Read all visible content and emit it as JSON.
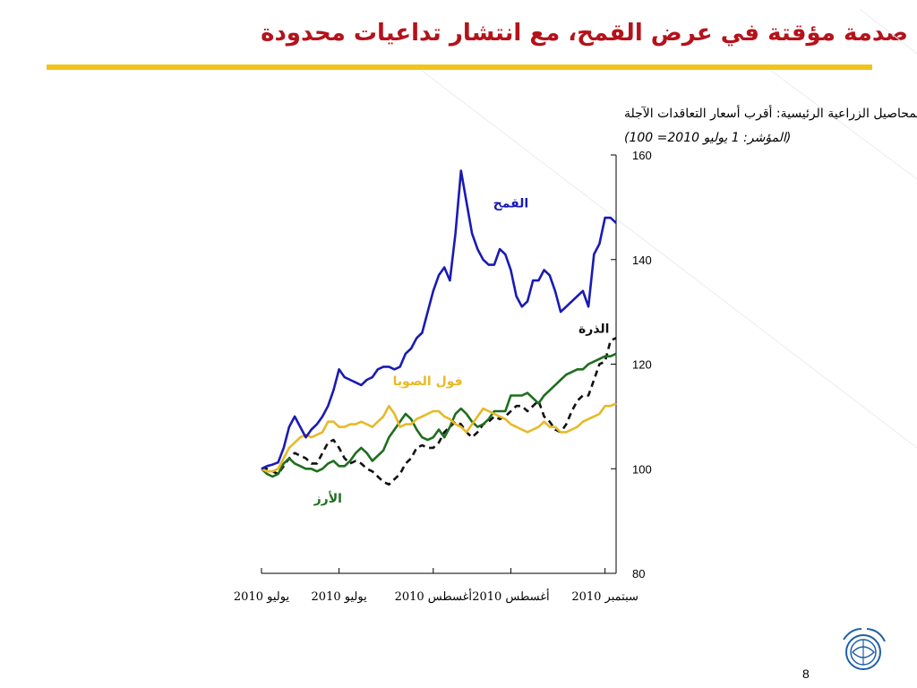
{
  "slide": {
    "title": "صدمة مؤقتة في عرض القمح، مع انتشار تداعيات محدودة",
    "page_number": "8",
    "accent_color": "#f0c419",
    "title_color": "#b5121b"
  },
  "chart_data": {
    "type": "line",
    "title": "المحاصيل الزراعية الرئيسية: أقرب أسعار التعاقدات الآجلة",
    "subtitle": "(المؤشر: 1 يوليو 2010= 100)",
    "ylim": [
      80,
      160
    ],
    "yticks": [
      80,
      100,
      120,
      140,
      160
    ],
    "y_axis_side": "right",
    "grid": false,
    "x_tick_labels": [
      "يوليو 2010",
      "يوليو 2010",
      "أغسطس 2010",
      "أغسطس 2010",
      "سبتمبر 2010"
    ],
    "x_tick_days": [
      0,
      14,
      31,
      45,
      62
    ],
    "series": [
      {
        "name": "القمح",
        "color": "#1a1ab5",
        "dash": "solid",
        "x": [
          0,
          1,
          2,
          3,
          4,
          5,
          6,
          7,
          8,
          9,
          10,
          11,
          12,
          13,
          14,
          15,
          16,
          17,
          18,
          19,
          20,
          21,
          22,
          23,
          24,
          25,
          26,
          27,
          28,
          29,
          30,
          31,
          32,
          33,
          34,
          35,
          36,
          37,
          38,
          39,
          40,
          41,
          42,
          43,
          44,
          45,
          46,
          47,
          48,
          49,
          50,
          51,
          52,
          53,
          54,
          55,
          56,
          57,
          58,
          59,
          60,
          61,
          62,
          63,
          64
        ],
        "values": [
          100,
          100.5,
          100.8,
          101.2,
          104,
          108,
          110,
          108,
          106,
          107.5,
          108.5,
          110,
          112,
          115,
          119,
          117.5,
          117,
          116.5,
          116,
          117,
          117.5,
          119,
          119.5,
          119.5,
          119,
          119.5,
          122,
          123,
          125,
          126,
          130,
          134,
          137,
          138.5,
          136,
          145,
          157,
          151,
          145,
          142,
          140,
          139,
          139,
          142,
          141,
          138,
          133,
          131,
          132,
          136,
          136,
          138,
          137,
          134,
          130,
          131,
          132,
          133,
          134,
          131,
          141,
          143,
          148,
          148,
          147
        ],
        "label_pos": "above-right"
      },
      {
        "name": "الذرة",
        "color": "#111111",
        "dash": "dashed",
        "x": [
          0,
          1,
          2,
          3,
          4,
          5,
          6,
          7,
          8,
          9,
          10,
          11,
          12,
          13,
          14,
          15,
          16,
          17,
          18,
          19,
          20,
          21,
          22,
          23,
          24,
          25,
          26,
          27,
          28,
          29,
          30,
          31,
          32,
          33,
          34,
          35,
          36,
          37,
          38,
          39,
          40,
          41,
          42,
          43,
          44,
          45,
          46,
          47,
          48,
          49,
          50,
          51,
          52,
          53,
          54,
          55,
          56,
          57,
          58,
          59,
          60,
          61,
          62,
          63,
          64
        ],
        "values": [
          100,
          100,
          99.5,
          99,
          100.5,
          102,
          103,
          102.5,
          102,
          101,
          101,
          103,
          105,
          105.5,
          104,
          102,
          101,
          101.5,
          101,
          100,
          99.5,
          98.5,
          97.5,
          97,
          98,
          99,
          101,
          102,
          104,
          104.5,
          104,
          104,
          105,
          107,
          108,
          109,
          108.5,
          107,
          106,
          107,
          108.5,
          109,
          110,
          109.5,
          110,
          111,
          112,
          112,
          111,
          112,
          113,
          110,
          109,
          107.5,
          107,
          108.5,
          111,
          113,
          114,
          114,
          117,
          120,
          120.5,
          124.5,
          125
        ],
        "label_pos": "above"
      },
      {
        "name": "فول الصويا",
        "color": "#e8b928",
        "dash": "solid",
        "x": [
          0,
          1,
          2,
          3,
          4,
          5,
          6,
          7,
          8,
          9,
          10,
          11,
          12,
          13,
          14,
          15,
          16,
          17,
          18,
          19,
          20,
          21,
          22,
          23,
          24,
          25,
          26,
          27,
          28,
          29,
          30,
          31,
          32,
          33,
          34,
          35,
          36,
          37,
          38,
          39,
          40,
          41,
          42,
          43,
          44,
          45,
          46,
          47,
          48,
          49,
          50,
          51,
          52,
          53,
          54,
          55,
          56,
          57,
          58,
          59,
          60,
          61,
          62,
          63,
          64
        ],
        "values": [
          100,
          99.5,
          99.5,
          100,
          102,
          104,
          105,
          106,
          106.5,
          106,
          106.5,
          107,
          109,
          109,
          108,
          108,
          108.5,
          108.5,
          109,
          108.5,
          108,
          109,
          110,
          112,
          110.5,
          108,
          108.5,
          108.5,
          109.5,
          110,
          110.5,
          111,
          111,
          110,
          109.5,
          108.5,
          108,
          107,
          108.5,
          110,
          111.5,
          111,
          110.5,
          110,
          109.5,
          108.5,
          108,
          107.5,
          107,
          107.5,
          108,
          109,
          108,
          108,
          107,
          107,
          107.5,
          108,
          109,
          109.5,
          110,
          110.5,
          112,
          112,
          112.5
        ],
        "label_pos": "left"
      },
      {
        "name": "الأرز",
        "color": "#1e6e1e",
        "dash": "solid",
        "x": [
          0,
          1,
          2,
          3,
          4,
          5,
          6,
          7,
          8,
          9,
          10,
          11,
          12,
          13,
          14,
          15,
          16,
          17,
          18,
          19,
          20,
          21,
          22,
          23,
          24,
          25,
          26,
          27,
          28,
          29,
          30,
          31,
          32,
          33,
          34,
          35,
          36,
          37,
          38,
          39,
          40,
          41,
          42,
          43,
          44,
          45,
          46,
          47,
          48,
          49,
          50,
          51,
          52,
          53,
          54,
          55,
          56,
          57,
          58,
          59,
          60,
          61,
          62,
          63,
          64
        ],
        "values": [
          100,
          99,
          98.5,
          99,
          101,
          102,
          101,
          100.5,
          100,
          100,
          99.5,
          100,
          101,
          101.5,
          100.5,
          100.5,
          101.5,
          103,
          104,
          103,
          101.5,
          102.5,
          103.5,
          106,
          107.5,
          109,
          110.5,
          109.5,
          107.5,
          106,
          105.5,
          106,
          107.5,
          106,
          108,
          110.5,
          111.5,
          110.5,
          109,
          108,
          108.5,
          109.5,
          111,
          111,
          111,
          114,
          114,
          114,
          114.5,
          113.5,
          112.5,
          114,
          115,
          116,
          117,
          118,
          118.5,
          119,
          119,
          120,
          120.5,
          121,
          121.5,
          121.5,
          122
        ],
        "label_pos": "below"
      }
    ]
  }
}
